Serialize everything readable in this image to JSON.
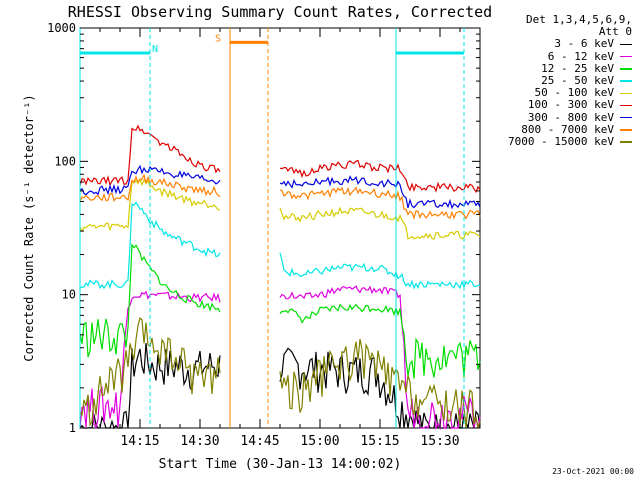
{
  "chart_data": {
    "type": "line",
    "title": "RHESSI Observing Summary Count Rates, Corrected",
    "xlabel": "Start Time (30-Jan-13 14:00:02)",
    "ylabel": "Corrected Count Rate (s⁻¹ detector⁻¹)",
    "ylim": [
      1,
      1000
    ],
    "yscale": "log",
    "xlim_minutes": [
      0,
      100
    ],
    "x_tick_labels": [
      {
        "t": 15,
        "label": "14:15"
      },
      {
        "t": 30,
        "label": "14:30"
      },
      {
        "t": 45,
        "label": "14:45"
      },
      {
        "t": 60,
        "label": "15:00"
      },
      {
        "t": 75,
        "label": "15:15"
      },
      {
        "t": 90,
        "label": "15:30"
      }
    ],
    "y_tick_labels": [
      {
        "v": 1,
        "label": "1"
      },
      {
        "v": 10,
        "label": "10"
      },
      {
        "v": 100,
        "label": "100"
      },
      {
        "v": 1000,
        "label": "1000"
      }
    ],
    "legend": {
      "header_line1": "Det 1,3,4,5,6,9,",
      "header_line2": "Att 0",
      "placement": "right"
    },
    "gap_minutes": [
      35,
      50
    ],
    "series": [
      {
        "name": "3 - 6 keV",
        "color": "#000000",
        "points": [
          [
            0,
            1
          ],
          [
            12,
            1
          ],
          [
            13,
            3
          ],
          [
            15,
            3.5
          ],
          [
            18,
            3
          ],
          [
            22,
            3
          ],
          [
            28,
            2.8
          ],
          [
            34,
            3
          ],
          [
            35,
            3
          ],
          [
            50,
            3
          ],
          [
            51,
            3
          ],
          [
            60,
            2.8
          ],
          [
            68,
            2.7
          ],
          [
            74,
            2.7
          ],
          [
            80,
            1.5
          ],
          [
            86,
            1
          ],
          [
            100,
            1
          ]
        ]
      },
      {
        "name": "6 - 12 keV",
        "color": "#e000e0",
        "points": [
          [
            0,
            1.5
          ],
          [
            10,
            1.5
          ],
          [
            12,
            8
          ],
          [
            13,
            10
          ],
          [
            15,
            10
          ],
          [
            18,
            10
          ],
          [
            22,
            9.8
          ],
          [
            28,
            9.5
          ],
          [
            34,
            9.5
          ],
          [
            35,
            9.3
          ],
          [
            50,
            9.3
          ],
          [
            51,
            10
          ],
          [
            56,
            9.5
          ],
          [
            60,
            10
          ],
          [
            65,
            11
          ],
          [
            70,
            11
          ],
          [
            74,
            11
          ],
          [
            80,
            10
          ],
          [
            82,
            1.3
          ],
          [
            100,
            1.3
          ]
        ]
      },
      {
        "name": "12 - 25 keV",
        "color": "#00dd00",
        "points": [
          [
            0,
            5
          ],
          [
            12,
            5
          ],
          [
            13,
            25
          ],
          [
            14,
            22
          ],
          [
            16,
            18
          ],
          [
            18,
            15
          ],
          [
            22,
            11
          ],
          [
            26,
            9.5
          ],
          [
            30,
            8.5
          ],
          [
            34,
            8
          ],
          [
            35,
            7.5
          ],
          [
            50,
            7.5
          ],
          [
            51,
            8
          ],
          [
            56,
            6.5
          ],
          [
            60,
            7.5
          ],
          [
            65,
            8
          ],
          [
            70,
            8
          ],
          [
            74,
            8
          ],
          [
            80,
            7.5
          ],
          [
            82,
            3.5
          ],
          [
            100,
            3.5
          ]
        ]
      },
      {
        "name": "25 - 50 keV",
        "color": "#00e5e5",
        "points": [
          [
            0,
            12
          ],
          [
            12,
            12
          ],
          [
            13,
            50
          ],
          [
            15,
            45
          ],
          [
            18,
            35
          ],
          [
            22,
            28
          ],
          [
            26,
            25
          ],
          [
            30,
            22
          ],
          [
            34,
            20
          ],
          [
            35,
            20
          ],
          [
            50,
            20
          ],
          [
            51,
            15
          ],
          [
            56,
            14
          ],
          [
            60,
            15
          ],
          [
            65,
            16
          ],
          [
            70,
            16
          ],
          [
            74,
            16
          ],
          [
            80,
            14
          ],
          [
            82,
            12
          ],
          [
            100,
            12
          ]
        ]
      },
      {
        "name": "50 - 100 keV",
        "color": "#d6cc00",
        "points": [
          [
            0,
            32
          ],
          [
            12,
            33
          ],
          [
            13,
            72
          ],
          [
            16,
            70
          ],
          [
            20,
            60
          ],
          [
            24,
            55
          ],
          [
            28,
            50
          ],
          [
            32,
            48
          ],
          [
            34,
            47
          ],
          [
            35,
            46
          ],
          [
            50,
            46
          ],
          [
            51,
            38
          ],
          [
            56,
            38
          ],
          [
            60,
            40
          ],
          [
            65,
            42
          ],
          [
            70,
            42
          ],
          [
            74,
            40
          ],
          [
            80,
            38
          ],
          [
            82,
            28
          ],
          [
            100,
            28
          ]
        ]
      },
      {
        "name": "100 - 300 keV",
        "color": "#e00000",
        "points": [
          [
            0,
            70
          ],
          [
            12,
            72
          ],
          [
            13,
            180
          ],
          [
            16,
            170
          ],
          [
            20,
            140
          ],
          [
            24,
            120
          ],
          [
            28,
            100
          ],
          [
            32,
            90
          ],
          [
            34,
            86
          ],
          [
            35,
            85
          ],
          [
            50,
            85
          ],
          [
            51,
            85
          ],
          [
            56,
            82
          ],
          [
            60,
            88
          ],
          [
            65,
            95
          ],
          [
            70,
            95
          ],
          [
            74,
            90
          ],
          [
            80,
            88
          ],
          [
            82,
            65
          ],
          [
            100,
            63
          ]
        ]
      },
      {
        "name": "300 - 800 keV",
        "color": "#0000e0",
        "points": [
          [
            0,
            60
          ],
          [
            12,
            62
          ],
          [
            13,
            85
          ],
          [
            16,
            88
          ],
          [
            20,
            84
          ],
          [
            24,
            80
          ],
          [
            28,
            75
          ],
          [
            32,
            72
          ],
          [
            34,
            70
          ],
          [
            35,
            70
          ],
          [
            50,
            70
          ],
          [
            51,
            70
          ],
          [
            56,
            66
          ],
          [
            60,
            70
          ],
          [
            65,
            72
          ],
          [
            70,
            72
          ],
          [
            74,
            70
          ],
          [
            80,
            66
          ],
          [
            82,
            48
          ],
          [
            100,
            47
          ]
        ]
      },
      {
        "name": "800 - 7000 keV",
        "color": "#ff8000",
        "points": [
          [
            0,
            53
          ],
          [
            12,
            54
          ],
          [
            13,
            72
          ],
          [
            16,
            74
          ],
          [
            20,
            70
          ],
          [
            24,
            66
          ],
          [
            28,
            62
          ],
          [
            32,
            60
          ],
          [
            34,
            60
          ],
          [
            35,
            58
          ],
          [
            50,
            58
          ],
          [
            51,
            58
          ],
          [
            56,
            55
          ],
          [
            60,
            57
          ],
          [
            65,
            60
          ],
          [
            70,
            60
          ],
          [
            74,
            58
          ],
          [
            80,
            55
          ],
          [
            82,
            40
          ],
          [
            100,
            40
          ]
        ]
      },
      {
        "name": "7000 - 15000 keV",
        "color": "#808000",
        "points": [
          [
            0,
            1.2
          ],
          [
            6,
            2
          ],
          [
            12,
            3
          ],
          [
            15,
            5
          ],
          [
            20,
            4
          ],
          [
            26,
            3
          ],
          [
            30,
            2.5
          ],
          [
            34,
            2.8
          ],
          [
            35,
            2.8
          ],
          [
            50,
            2.8
          ],
          [
            51,
            2
          ],
          [
            56,
            2
          ],
          [
            60,
            2.5
          ],
          [
            65,
            3.2
          ],
          [
            70,
            3.5
          ],
          [
            74,
            3
          ],
          [
            80,
            2
          ],
          [
            86,
            1.6
          ],
          [
            100,
            1.4
          ]
        ]
      }
    ],
    "annotations": [
      {
        "label": "N",
        "color": "#00e5e5",
        "start": 0,
        "end": 17.5,
        "marker_y_value": 650
      },
      {
        "label": "",
        "color": "#00e5e5",
        "start": 79,
        "end": 96,
        "marker_y_value": 650
      },
      {
        "label": "S",
        "color": "#ff8000",
        "start": 37.5,
        "end": 47,
        "marker_y_value": 780
      }
    ]
  },
  "footer": {
    "date": "23-Oct-2021 00:00"
  }
}
